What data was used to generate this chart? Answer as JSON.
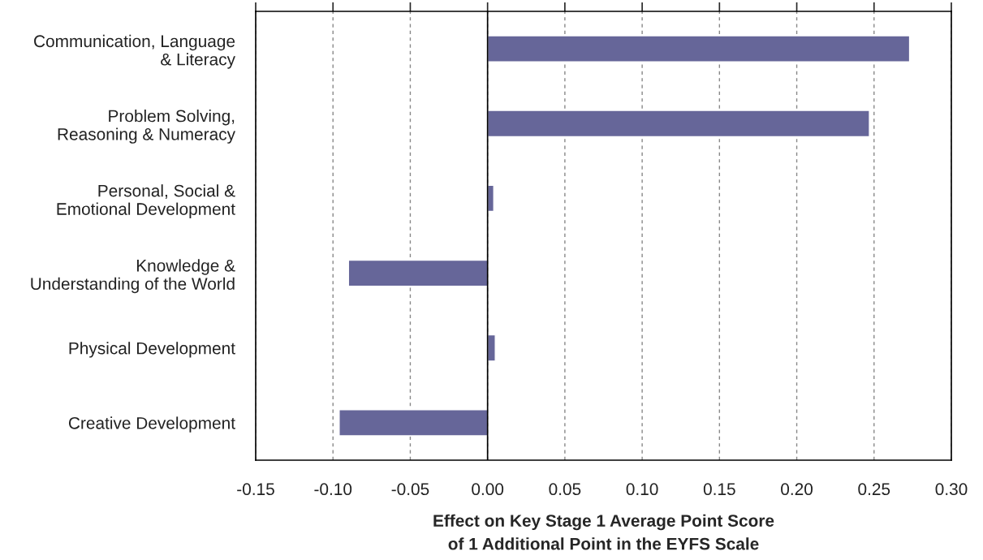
{
  "chart_data": {
    "type": "bar",
    "orientation": "horizontal",
    "xlabel": "Effect on Key Stage 1 Average Point Score\nof 1 Additional Point in the EYFS Scale",
    "categories": [
      "Communication, Language\n& Literacy",
      "Problem Solving,\nReasoning & Numeracy",
      "Personal, Social &\nEmotional Development",
      "Knowledge &\nUnderstanding of the World",
      "Physical Development",
      "Creative Development"
    ],
    "values": [
      0.273,
      0.247,
      0.004,
      -0.09,
      0.005,
      -0.096
    ],
    "color": "#666699",
    "xlim": [
      -0.15,
      0.3
    ],
    "xticks": [
      {
        "value": -0.15,
        "label": "-0.15"
      },
      {
        "value": -0.1,
        "label": "-0.10"
      },
      {
        "value": -0.05,
        "label": "-0.05"
      },
      {
        "value": 0.0,
        "label": "0.00"
      },
      {
        "value": 0.05,
        "label": "0.05"
      },
      {
        "value": 0.1,
        "label": "0.10"
      },
      {
        "value": 0.15,
        "label": "0.15"
      },
      {
        "value": 0.2,
        "label": "0.20"
      },
      {
        "value": 0.25,
        "label": "0.25"
      },
      {
        "value": 0.3,
        "label": "0.30"
      }
    ],
    "grid": "x",
    "ref_lines": [
      {
        "axis": "x",
        "value": 0,
        "color": "#000000",
        "line_style": "solid"
      }
    ]
  }
}
